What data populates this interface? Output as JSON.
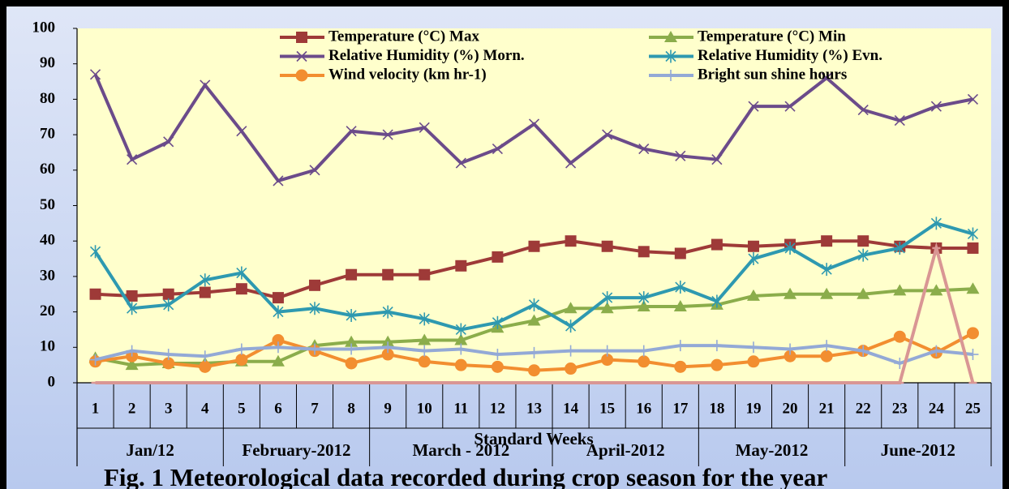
{
  "chart_data": {
    "type": "line",
    "x_label": "Standard Weeks",
    "caption": "Fig. 1 Meteorological data recorded during crop season for the year",
    "categories": [
      "1",
      "2",
      "3",
      "4",
      "5",
      "6",
      "7",
      "8",
      "9",
      "10",
      "11",
      "12",
      "13",
      "14",
      "15",
      "16",
      "17",
      "18",
      "19",
      "20",
      "21",
      "22",
      "23",
      "24",
      "25"
    ],
    "groups": [
      {
        "label": "Jan/12",
        "span": 4
      },
      {
        "label": "February-2012",
        "span": 4
      },
      {
        "label": "March - 2012",
        "span": 5
      },
      {
        "label": "April-2012",
        "span": 4
      },
      {
        "label": "May-2012",
        "span": 4
      },
      {
        "label": "June-2012",
        "span": 4
      }
    ],
    "ylim": [
      0,
      100
    ],
    "yticks": [
      0,
      10,
      20,
      30,
      40,
      50,
      60,
      70,
      80,
      90,
      100
    ],
    "legend": "top",
    "series": [
      {
        "name": "Temperature (°C) Max",
        "color": "#9e3a38",
        "marker": "square",
        "values": [
          25,
          24.5,
          25,
          25.5,
          26.5,
          24,
          27.5,
          30.5,
          30.5,
          30.5,
          33,
          35.5,
          38.5,
          40,
          38.5,
          37,
          36.5,
          39,
          38.5,
          39,
          40,
          40,
          38.5,
          38,
          38
        ]
      },
      {
        "name": "Temperature (°C) Min",
        "color": "#8bad4b",
        "marker": "triangle",
        "values": [
          7,
          5,
          5.5,
          5.5,
          6,
          6,
          10.5,
          11.5,
          11.5,
          12,
          12,
          15.5,
          17.5,
          21,
          21,
          21.5,
          21.5,
          22,
          24.5,
          25,
          25,
          25,
          26,
          26,
          26.5
        ]
      },
      {
        "name": "Relative Humidity (%) Morn.",
        "color": "#6b4b8a",
        "marker": "x",
        "values": [
          87,
          63,
          68,
          84,
          71,
          57,
          60,
          71,
          70,
          72,
          62,
          66,
          73,
          62,
          70,
          66,
          64,
          63,
          78,
          78,
          86,
          77,
          74,
          78,
          80
        ]
      },
      {
        "name": "Relative Humidity (%) Evn.",
        "color": "#2e99b0",
        "marker": "star",
        "values": [
          37,
          21,
          22,
          29,
          31,
          20,
          21,
          19,
          20,
          18,
          15,
          17,
          22,
          16,
          24,
          24,
          27,
          23,
          35,
          38,
          32,
          36,
          38,
          45,
          42
        ]
      },
      {
        "name": "Wind velocity  (km hr-1)",
        "color": "#f28e30",
        "marker": "circle",
        "values": [
          6,
          7.5,
          5.5,
          4.5,
          6.5,
          12,
          9,
          5.5,
          8,
          6,
          5,
          4.5,
          3.5,
          4,
          6.5,
          6,
          4.5,
          5,
          6,
          7.5,
          7.5,
          9,
          13,
          8.5,
          14
        ]
      },
      {
        "name": "Bright sun shine hours",
        "color": "#93a9d6",
        "marker": "plus",
        "values": [
          6.5,
          9,
          8,
          7.5,
          9.5,
          10,
          9.5,
          9.5,
          10,
          9,
          9.5,
          8,
          8.5,
          9,
          9,
          9,
          10.5,
          10.5,
          10,
          9.5,
          10.5,
          9,
          5.5,
          9,
          8
        ]
      },
      {
        "color": "#d99694",
        "marker": "dash",
        "values": [
          0,
          0,
          0,
          0,
          0,
          0,
          0,
          0,
          0,
          0,
          0,
          0,
          0,
          0,
          0,
          0,
          0,
          0,
          0,
          0,
          0,
          0,
          0,
          38,
          0
        ]
      }
    ]
  }
}
